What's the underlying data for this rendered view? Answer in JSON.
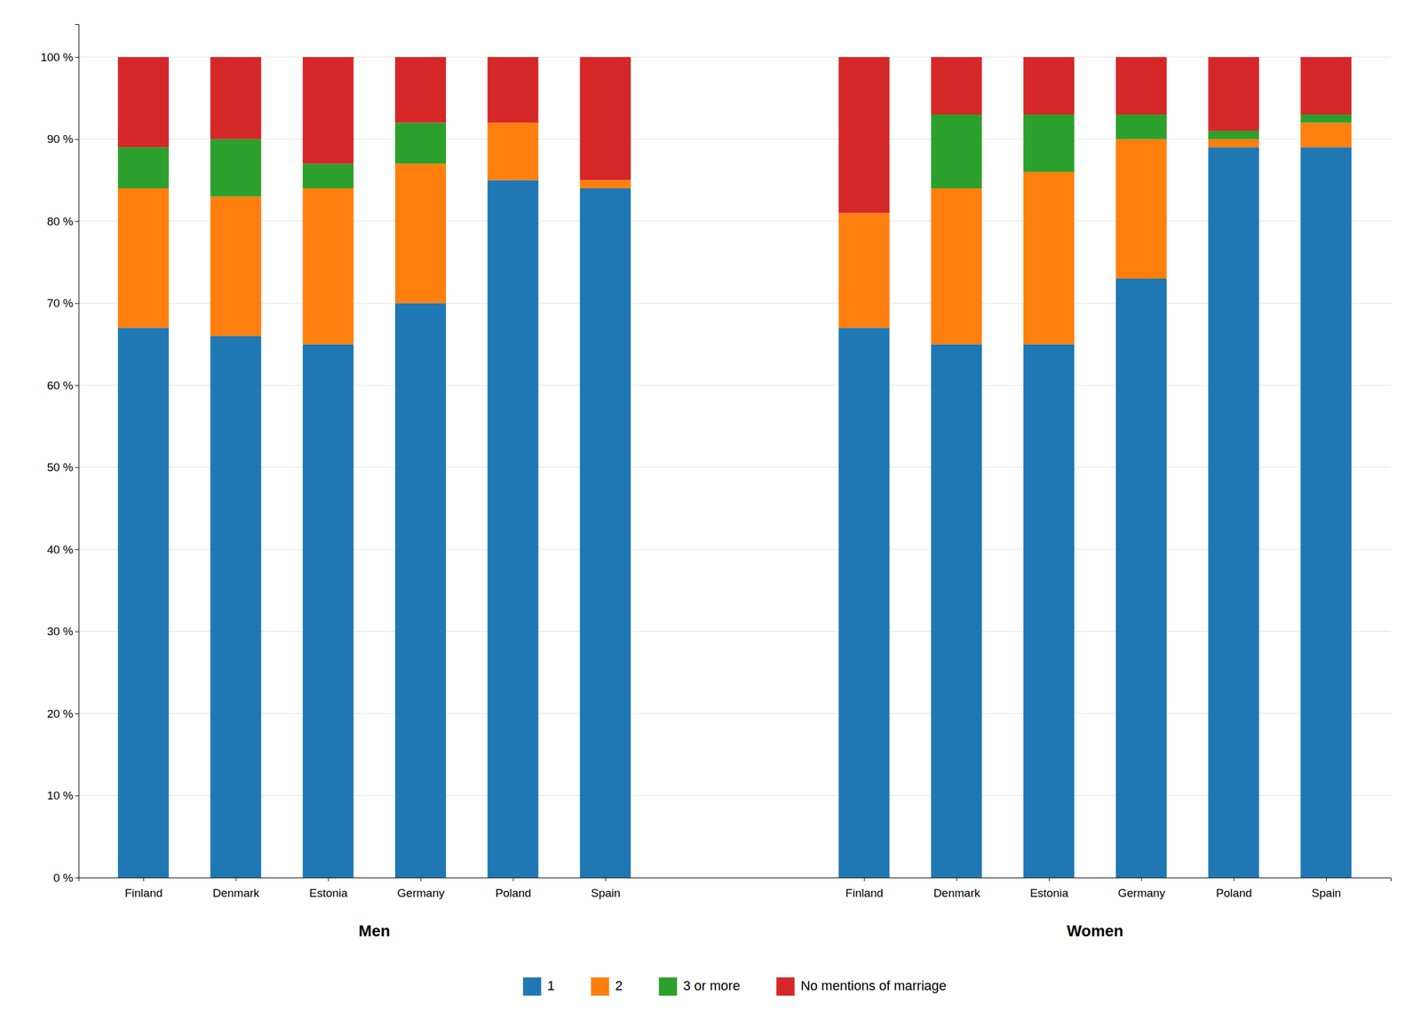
{
  "chart_data": {
    "type": "bar",
    "stacked": true,
    "grid": true,
    "categories": [
      "Finland",
      "Denmark",
      "Estonia",
      "Germany",
      "Poland",
      "Spain",
      "Finland",
      "Denmark",
      "Estonia",
      "Germany",
      "Poland",
      "Spain"
    ],
    "groups": [
      "Men",
      "Women"
    ],
    "series": [
      {
        "name": "1",
        "values": [
          67,
          66,
          65,
          70,
          85,
          84,
          67,
          65,
          65,
          73,
          89,
          89
        ]
      },
      {
        "name": "2",
        "values": [
          17,
          17,
          19,
          17,
          7,
          1,
          14,
          19,
          21,
          17,
          1,
          3
        ]
      },
      {
        "name": "3 or more",
        "values": [
          5,
          7,
          3,
          5,
          0,
          0,
          0,
          9,
          7,
          3,
          1,
          1
        ]
      },
      {
        "name": "No mentions of marriage",
        "values": [
          11,
          10,
          13,
          8,
          8,
          15,
          19,
          7,
          7,
          7,
          9,
          7
        ]
      }
    ],
    "ylim": [
      0,
      104
    ],
    "yticks": [
      {
        "value": 0,
        "label": "0 %"
      },
      {
        "value": 10,
        "label": "10 %"
      },
      {
        "value": 20,
        "label": "20 %"
      },
      {
        "value": 30,
        "label": "30 %"
      },
      {
        "value": 40,
        "label": "40 %"
      },
      {
        "value": 50,
        "label": "50 %"
      },
      {
        "value": 60,
        "label": "60 %"
      },
      {
        "value": 70,
        "label": "70 %"
      },
      {
        "value": 80,
        "label": "80 %"
      },
      {
        "value": 90,
        "label": "90 %"
      },
      {
        "value": 100,
        "label": "100 %"
      }
    ]
  }
}
